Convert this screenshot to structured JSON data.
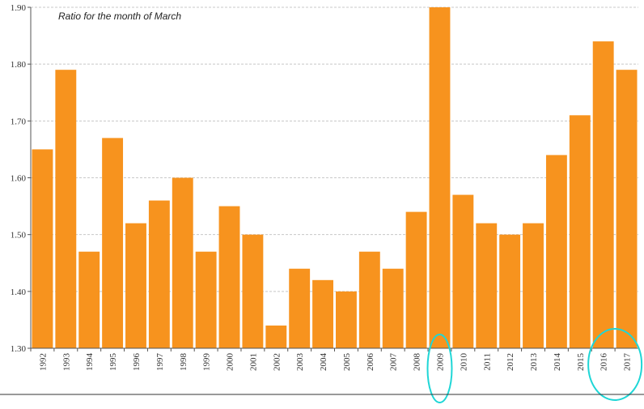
{
  "chart_data": {
    "type": "bar",
    "title": "Ratio for the month of March",
    "xlabel": "",
    "ylabel": "",
    "categories": [
      "1992",
      "1993",
      "1994",
      "1995",
      "1996",
      "1997",
      "1998",
      "1999",
      "2000",
      "2001",
      "2002",
      "2003",
      "2004",
      "2005",
      "2006",
      "2007",
      "2008",
      "2009",
      "2010",
      "2011",
      "2012",
      "2013",
      "2014",
      "2015",
      "2016",
      "2017"
    ],
    "values": [
      1.65,
      1.79,
      1.47,
      1.67,
      1.52,
      1.56,
      1.6,
      1.47,
      1.55,
      1.5,
      1.34,
      1.44,
      1.42,
      1.4,
      1.47,
      1.44,
      1.54,
      1.9,
      1.57,
      1.52,
      1.5,
      1.52,
      1.64,
      1.71,
      1.84,
      1.79
    ],
    "ylim": [
      1.3,
      1.9
    ],
    "yticks": [
      "1.30",
      "1.40",
      "1.50",
      "1.60",
      "1.70",
      "1.80",
      "1.90"
    ],
    "grid": true,
    "highlighted_categories": [
      "2009",
      "2016",
      "2017"
    ],
    "colors": {
      "bar": "#f7931e",
      "highlight_ring": "#1fd6d6",
      "grid": "#c8c8c8",
      "axis": "#555555"
    }
  }
}
